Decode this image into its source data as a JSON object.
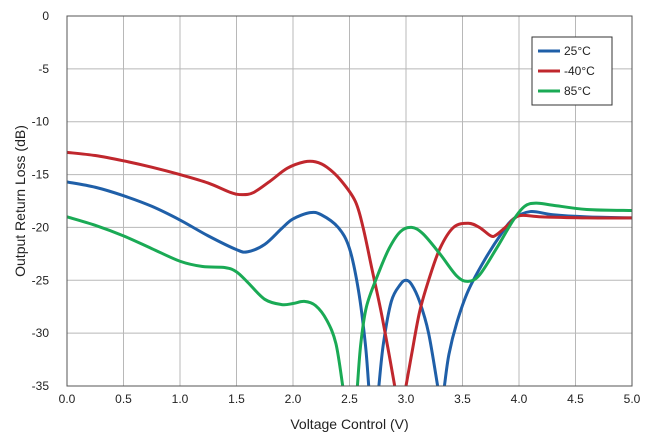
{
  "chart_data": {
    "type": "line",
    "title": "",
    "xlabel": "Voltage Control (V)",
    "ylabel": "Output Return Loss (dB)",
    "xlim": [
      0,
      5
    ],
    "ylim": [
      -35,
      0
    ],
    "xticks": [
      "0.0",
      "0.5",
      "1.0",
      "1.5",
      "2.0",
      "2.5",
      "3.0",
      "3.5",
      "4.0",
      "4.5",
      "5.0"
    ],
    "yticks": [
      "0",
      "-5",
      "-10",
      "-15",
      "-20",
      "-25",
      "-30",
      "-35"
    ],
    "grid": true,
    "legend_position": "top-right",
    "series": [
      {
        "name": "25°C",
        "color": "#1f5fa8",
        "points": [
          [
            0.0,
            -15.7
          ],
          [
            0.25,
            -16.2
          ],
          [
            0.5,
            -17.0
          ],
          [
            0.75,
            -18.0
          ],
          [
            1.0,
            -19.3
          ],
          [
            1.25,
            -20.8
          ],
          [
            1.5,
            -22.1
          ],
          [
            1.6,
            -22.3
          ],
          [
            1.75,
            -21.6
          ],
          [
            1.9,
            -20.1
          ],
          [
            2.0,
            -19.2
          ],
          [
            2.15,
            -18.6
          ],
          [
            2.25,
            -18.8
          ],
          [
            2.4,
            -20.0
          ],
          [
            2.5,
            -22.0
          ],
          [
            2.58,
            -26.0
          ],
          [
            2.64,
            -31.0
          ],
          [
            2.67,
            -35.0
          ]
        ],
        "points_2": [
          [
            2.76,
            -35.0
          ],
          [
            2.8,
            -31.0
          ],
          [
            2.87,
            -27.0
          ],
          [
            2.95,
            -25.4
          ],
          [
            3.0,
            -25.0
          ],
          [
            3.05,
            -25.4
          ],
          [
            3.12,
            -27.0
          ],
          [
            3.2,
            -30.0
          ],
          [
            3.28,
            -35.0
          ]
        ],
        "points_3": [
          [
            3.34,
            -35.0
          ],
          [
            3.38,
            -32.0
          ],
          [
            3.45,
            -29.0
          ],
          [
            3.55,
            -26.0
          ],
          [
            3.7,
            -23.0
          ],
          [
            3.85,
            -20.5
          ],
          [
            3.95,
            -19.2
          ],
          [
            4.1,
            -18.5
          ],
          [
            4.3,
            -18.8
          ],
          [
            4.6,
            -19.0
          ],
          [
            5.0,
            -19.1
          ]
        ]
      },
      {
        "name": "-40°C",
        "color": "#c0272d",
        "points": [
          [
            0.0,
            -12.9
          ],
          [
            0.25,
            -13.2
          ],
          [
            0.5,
            -13.7
          ],
          [
            0.75,
            -14.3
          ],
          [
            1.0,
            -15.0
          ],
          [
            1.25,
            -15.8
          ],
          [
            1.45,
            -16.7
          ],
          [
            1.55,
            -16.9
          ],
          [
            1.65,
            -16.7
          ],
          [
            1.8,
            -15.6
          ],
          [
            1.95,
            -14.4
          ],
          [
            2.1,
            -13.8
          ],
          [
            2.2,
            -13.8
          ],
          [
            2.3,
            -14.3
          ],
          [
            2.42,
            -15.5
          ],
          [
            2.55,
            -17.5
          ],
          [
            2.62,
            -20.0
          ],
          [
            2.7,
            -24.0
          ],
          [
            2.78,
            -28.0
          ],
          [
            2.85,
            -32.0
          ],
          [
            2.9,
            -35.0
          ]
        ],
        "points_2": [
          [
            3.0,
            -35.0
          ],
          [
            3.05,
            -32.0
          ],
          [
            3.12,
            -28.0
          ],
          [
            3.2,
            -25.0
          ],
          [
            3.3,
            -22.0
          ],
          [
            3.42,
            -20.0
          ],
          [
            3.55,
            -19.6
          ],
          [
            3.65,
            -20.0
          ],
          [
            3.75,
            -20.8
          ],
          [
            3.8,
            -20.7
          ],
          [
            3.9,
            -19.8
          ],
          [
            4.0,
            -18.9
          ],
          [
            4.2,
            -19.0
          ],
          [
            4.6,
            -19.1
          ],
          [
            5.0,
            -19.1
          ]
        ]
      },
      {
        "name": "85°C",
        "color": "#1aaa55",
        "points": [
          [
            0.0,
            -19.0
          ],
          [
            0.25,
            -19.8
          ],
          [
            0.5,
            -20.8
          ],
          [
            0.75,
            -22.0
          ],
          [
            1.0,
            -23.2
          ],
          [
            1.2,
            -23.7
          ],
          [
            1.4,
            -23.8
          ],
          [
            1.5,
            -24.2
          ],
          [
            1.6,
            -25.2
          ],
          [
            1.75,
            -26.8
          ],
          [
            1.9,
            -27.3
          ],
          [
            2.0,
            -27.2
          ],
          [
            2.1,
            -27.0
          ],
          [
            2.2,
            -27.4
          ],
          [
            2.3,
            -28.8
          ],
          [
            2.38,
            -31.0
          ],
          [
            2.44,
            -35.0
          ]
        ],
        "points_2": [
          [
            2.57,
            -35.0
          ],
          [
            2.6,
            -31.0
          ],
          [
            2.65,
            -27.5
          ],
          [
            2.75,
            -24.5
          ],
          [
            2.85,
            -22.0
          ],
          [
            2.95,
            -20.4
          ],
          [
            3.05,
            -20.0
          ],
          [
            3.15,
            -20.6
          ],
          [
            3.3,
            -22.5
          ],
          [
            3.45,
            -24.6
          ],
          [
            3.55,
            -25.1
          ],
          [
            3.65,
            -24.5
          ],
          [
            3.8,
            -22.0
          ],
          [
            3.95,
            -19.3
          ],
          [
            4.05,
            -18.0
          ],
          [
            4.15,
            -17.7
          ],
          [
            4.3,
            -17.9
          ],
          [
            4.6,
            -18.3
          ],
          [
            5.0,
            -18.4
          ]
        ]
      }
    ]
  }
}
